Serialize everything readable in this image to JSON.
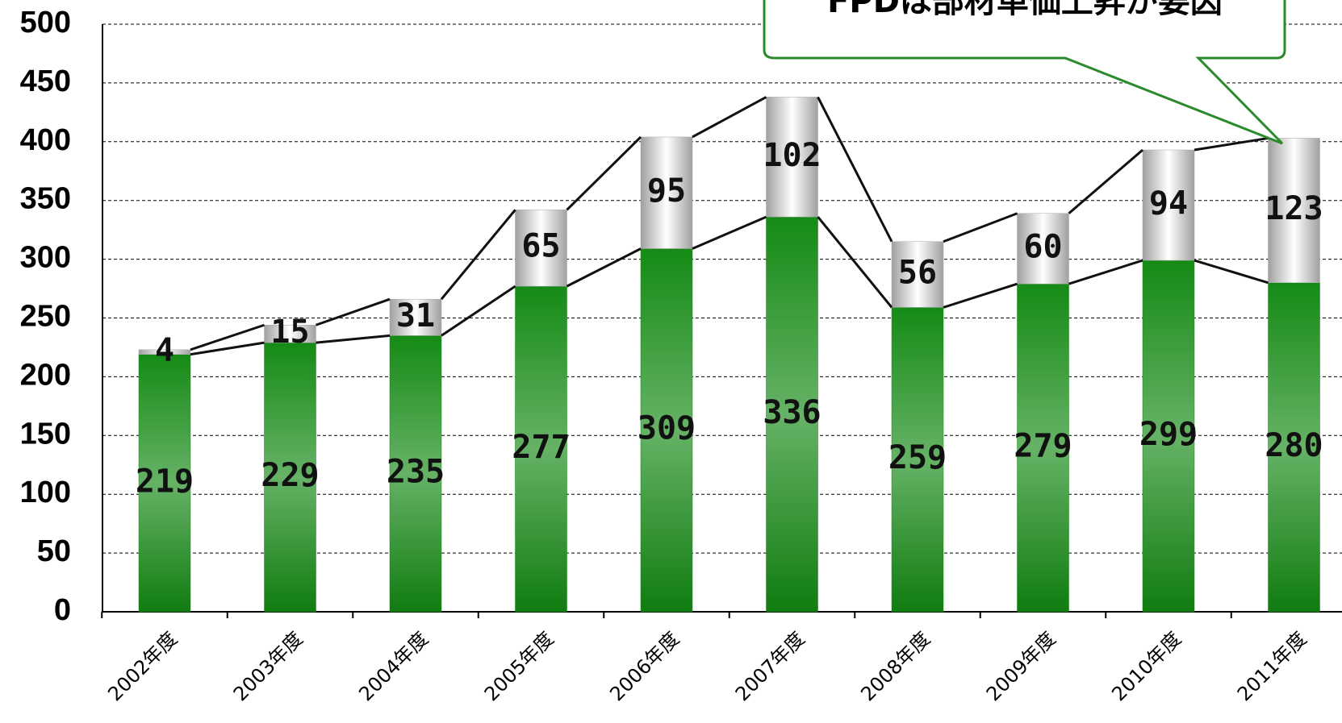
{
  "chart_data": {
    "type": "stacked_bar",
    "annotation": "FPDは部材単価上昇が要因",
    "categories": [
      "2002年度",
      "2003年度",
      "2004年度",
      "2005年度",
      "2006年度",
      "2007年度",
      "2008年度",
      "2009年度",
      "2010年度",
      "2011年度"
    ],
    "series": [
      {
        "color": "#158a15",
        "values": [
          219,
          229,
          235,
          277,
          309,
          336,
          259,
          279,
          299,
          280
        ]
      },
      {
        "color": "#a8a8a8",
        "values": [
          4,
          15,
          31,
          65,
          95,
          102,
          56,
          60,
          94,
          123
        ]
      }
    ],
    "ylim": [
      0,
      500
    ],
    "yticks": [
      0,
      50,
      100,
      150,
      200,
      250,
      300,
      350,
      400,
      450,
      500
    ],
    "grid": true
  }
}
